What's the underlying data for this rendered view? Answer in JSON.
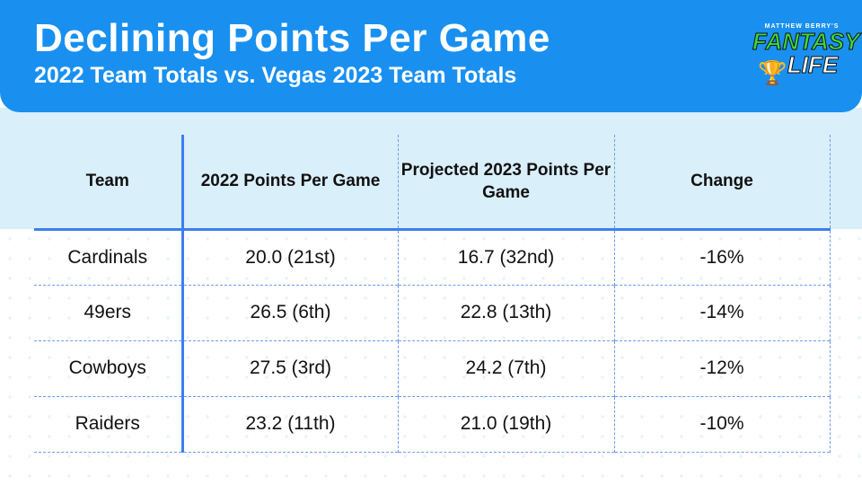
{
  "header": {
    "title": "Declining Points Per Game",
    "subtitle": "2022 Team Totals vs. Vegas 2023 Team Totals"
  },
  "logo": {
    "top": "MATTHEW BERRY'S",
    "brand1": "FANTASY",
    "brand2": "LIFE"
  },
  "table": {
    "columns": [
      "Team",
      "2022 Points Per Game",
      "Projected 2023 Points Per Game",
      "Change"
    ],
    "rows": [
      [
        "Cardinals",
        "20.0 (21st)",
        "16.7 (32nd)",
        "-16%"
      ],
      [
        "49ers",
        "26.5 (6th)",
        "22.8 (13th)",
        "-14%"
      ],
      [
        "Cowboys",
        "27.5 (3rd)",
        "24.2 (7th)",
        "-12%"
      ],
      [
        "Raiders",
        "23.2 (11th)",
        "21.0 (19th)",
        "-10%"
      ]
    ]
  },
  "colors": {
    "header": "#1990f0",
    "grid": "#3d7ff0",
    "band": "#d9effa"
  }
}
